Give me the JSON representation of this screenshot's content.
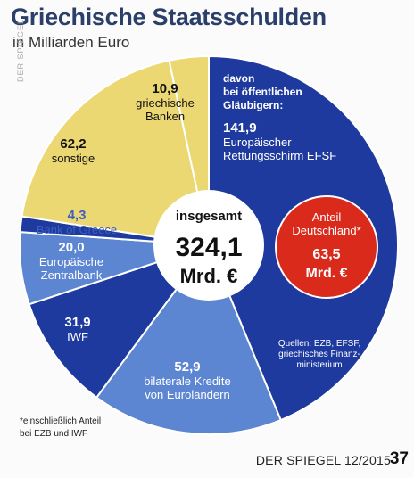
{
  "header": {
    "title": "Griechische Staatsschulden",
    "subtitle": "in Milliarden Euro"
  },
  "watermark": "DER SPIEGEL",
  "chart_data": {
    "type": "pie",
    "center_label": "insgesamt",
    "total_value": "324,1",
    "total_unit": "Mrd. €",
    "group_heading": [
      "davon",
      "bei öffentlichen",
      "Gläubigern:"
    ],
    "segments": [
      {
        "value": 141.9,
        "value_text": "141,9",
        "label": [
          "Europäischer",
          "Rettungsschirm EFSF"
        ],
        "color": "#1e3a9e"
      },
      {
        "value": 52.9,
        "value_text": "52,9",
        "label": [
          "bilaterale Kredite",
          "von Euroländern"
        ],
        "color": "#5d86d2"
      },
      {
        "value": 31.9,
        "value_text": "31,9",
        "label": [
          "IWF"
        ],
        "color": "#1e3a9e"
      },
      {
        "value": 20.0,
        "value_text": "20,0",
        "label": [
          "Europäische",
          "Zentralbank"
        ],
        "color": "#5d86d2"
      },
      {
        "value": 4.3,
        "value_text": "4,3",
        "label": [
          "Bank of Greece"
        ],
        "color": "#1e3a9e"
      },
      {
        "value": 62.2,
        "value_text": "62,2",
        "label": [
          "sonstige"
        ],
        "color": "#ecd873"
      },
      {
        "value": 10.9,
        "value_text": "10,9",
        "label": [
          "griechische",
          "Banken"
        ],
        "color": "#ecd873"
      }
    ],
    "highlight": {
      "title": [
        "Anteil",
        "Deutschland*"
      ],
      "value": "63,5",
      "unit": "Mrd. €",
      "color": "#d92a1c"
    },
    "source": [
      "Quellen: EZB, EFSF,",
      "griechisches Finanz-",
      "ministerium"
    ],
    "footnote": [
      "*einschließlich Anteil",
      "bei EZB und IWF"
    ]
  },
  "footer": {
    "publication": "DER SPIEGEL 12/2015",
    "page_number": "37"
  }
}
